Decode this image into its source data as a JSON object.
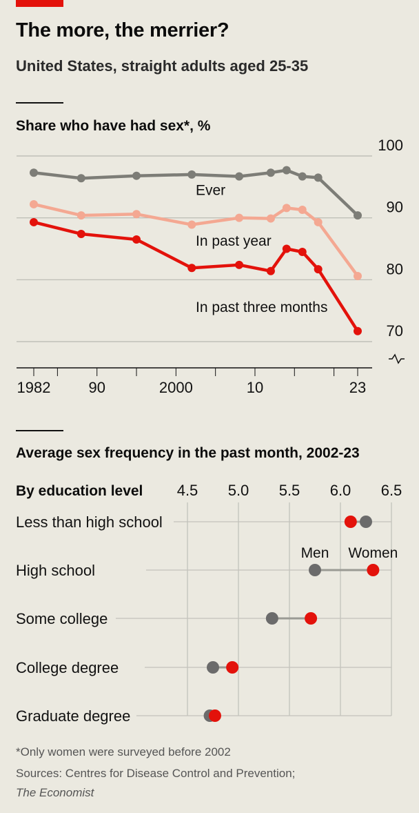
{
  "title": "The more, the merrier?",
  "subtitle": "United States, straight adults aged 25-35",
  "footnote": "*Only women were surveyed before 2002",
  "sources_line1": "Sources: Centres for Disease Control and Prevention;",
  "sources_line2": "The Economist",
  "colors": {
    "ever": "#7d7d77",
    "past_year": "#f4a892",
    "past_three_months": "#e3120b",
    "men": "#6b6b6b",
    "women": "#e3120b",
    "accent": "#e3120b"
  },
  "chart_data": [
    {
      "type": "line",
      "title": "Share who have had sex*, %",
      "ylim": [
        70,
        100
      ],
      "yticks": [
        70,
        80,
        90,
        100
      ],
      "xlim": [
        1982,
        2023
      ],
      "xtick_labels": [
        {
          "x": 1982,
          "label": "1982"
        },
        {
          "x": 1990,
          "label": "90"
        },
        {
          "x": 2000,
          "label": "2000"
        },
        {
          "x": 2010,
          "label": "10"
        },
        {
          "x": 2023,
          "label": "23"
        }
      ],
      "xtick_marks": [
        1982,
        1985,
        1990,
        1995,
        2000,
        2005,
        2010,
        2015,
        2020,
        2023
      ],
      "axis_break": true,
      "series": [
        {
          "name": "Ever",
          "key": "ever",
          "label_anchor": [
            2002.5,
            93.7
          ],
          "x": [
            1982,
            1988,
            1995,
            2002,
            2008,
            2012,
            2014,
            2016,
            2018,
            2023
          ],
          "values": [
            97.3,
            96.4,
            96.8,
            97.0,
            96.7,
            97.3,
            97.7,
            96.7,
            96.5,
            90.4
          ]
        },
        {
          "name": "In past year",
          "key": "past_year",
          "label_anchor": [
            2002.5,
            85.5
          ],
          "x": [
            1982,
            1988,
            1995,
            2002,
            2008,
            2012,
            2014,
            2016,
            2018,
            2023
          ],
          "values": [
            92.2,
            90.4,
            90.6,
            88.9,
            90.0,
            89.9,
            91.6,
            91.3,
            89.3,
            80.6
          ]
        },
        {
          "name": "In past three months",
          "key": "past_three_months",
          "label_anchor": [
            2002.5,
            74.8
          ],
          "x": [
            1982,
            1988,
            1995,
            2002,
            2008,
            2012,
            2014,
            2016,
            2018,
            2023
          ],
          "values": [
            89.3,
            87.4,
            86.5,
            81.9,
            82.4,
            81.4,
            85.0,
            84.5,
            81.7,
            71.7
          ]
        }
      ]
    },
    {
      "type": "dumbbell",
      "title": "Average sex frequency in the past month, 2002-23",
      "subtitle": "By education level",
      "xlim": [
        4.5,
        6.5
      ],
      "xticks": [
        "4.5",
        "5.0",
        "5.5",
        "6.0",
        "6.5"
      ],
      "legend": {
        "men": "Men",
        "women": "Women"
      },
      "categories": [
        "Less than high school",
        "High school",
        "Some college",
        "College degree",
        "Graduate degree"
      ],
      "series": [
        {
          "name": "Men",
          "key": "men",
          "values": [
            6.25,
            5.75,
            5.33,
            4.75,
            4.72
          ]
        },
        {
          "name": "Women",
          "key": "women",
          "values": [
            6.1,
            6.32,
            5.71,
            4.94,
            4.77
          ]
        }
      ]
    }
  ]
}
